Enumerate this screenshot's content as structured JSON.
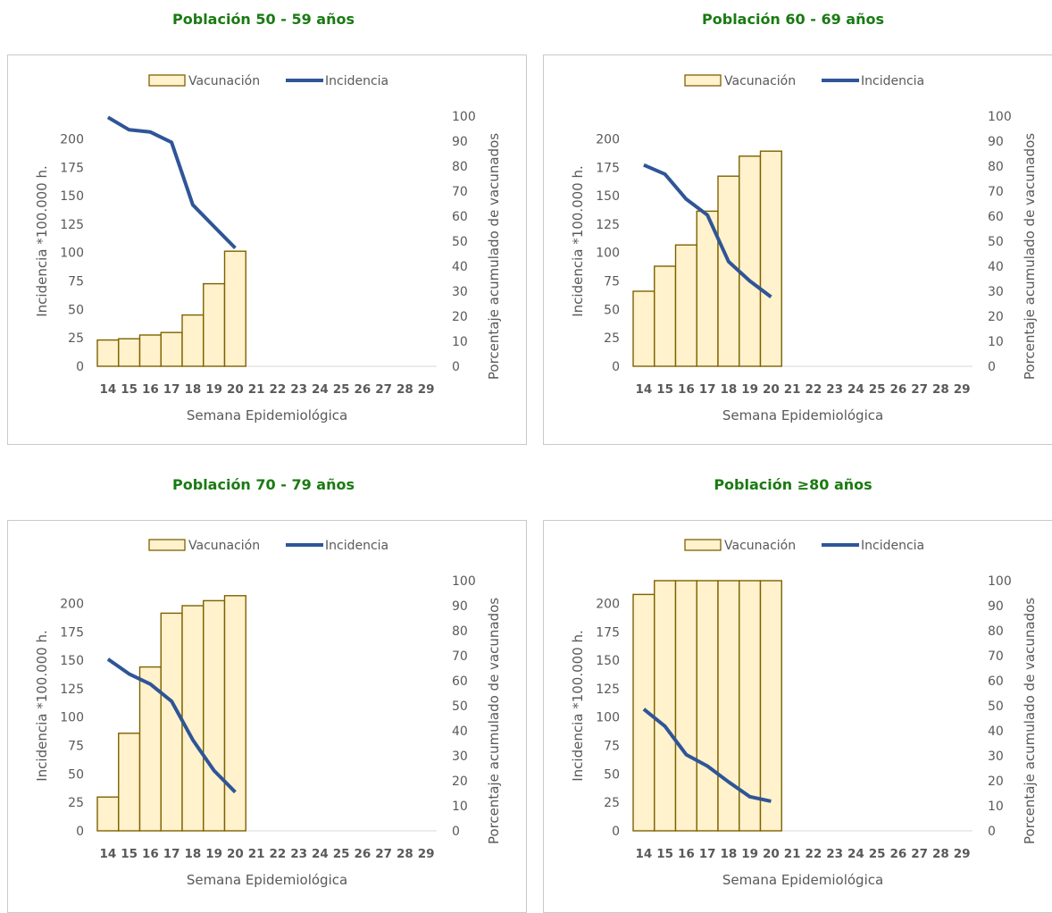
{
  "colors": {
    "title": "#1a7a12",
    "bar_fill": "#fff2cc",
    "bar_stroke": "#7f6000",
    "line": "#2f5597",
    "axis_text": "#595959",
    "tick_bold": "#595959"
  },
  "legend": {
    "bar_label": "Vacunación",
    "line_label": "Incidencia"
  },
  "charts": [
    {
      "title": "Población 50 - 59  años",
      "chart_data": {
        "type": "bar",
        "categories": [
          "14",
          "15",
          "16",
          "17",
          "18",
          "19",
          "20",
          "21",
          "22",
          "23",
          "24",
          "25",
          "26",
          "27",
          "28",
          "29"
        ],
        "series": [
          {
            "name": "Vacunación",
            "type": "bar",
            "axis": "right",
            "values": [
              10.5,
              11,
              12.5,
              13.5,
              20.5,
              33,
              46,
              null,
              null,
              null,
              null,
              null,
              null,
              null,
              null,
              null
            ]
          },
          {
            "name": "Incidencia",
            "type": "line",
            "axis": "left",
            "values": [
              219,
              208,
              206,
              197,
              142,
              123,
              104,
              null,
              null,
              null,
              null,
              null,
              null,
              null,
              null,
              null
            ]
          }
        ],
        "xlabel": "Semana Epidemiológica",
        "ylabel": "Incidencia *100.000 h.",
        "y2label": "Porcentaje acumulado de vacunados",
        "yticks": [
          "0",
          "25",
          "50",
          "75",
          "100",
          "125",
          "150",
          "175",
          "200"
        ],
        "y2ticks": [
          "0",
          "10",
          "20",
          "30",
          "40",
          "50",
          "60",
          "70",
          "80",
          "90",
          "100"
        ],
        "ylim": [
          0,
          220
        ],
        "y2lim": [
          0,
          100
        ]
      }
    },
    {
      "title": "Población 60 - 69 años",
      "chart_data": {
        "type": "bar",
        "categories": [
          "14",
          "15",
          "16",
          "17",
          "18",
          "19",
          "20",
          "21",
          "22",
          "23",
          "24",
          "25",
          "26",
          "27",
          "28",
          "29"
        ],
        "series": [
          {
            "name": "Vacunación",
            "type": "bar",
            "axis": "right",
            "values": [
              30,
              40,
              48.5,
              62,
              76,
              84,
              86,
              null,
              null,
              null,
              null,
              null,
              null,
              null,
              null,
              null
            ]
          },
          {
            "name": "Incidencia",
            "type": "line",
            "axis": "left",
            "values": [
              177,
              169,
              147,
              133,
              92,
              75,
              61,
              null,
              null,
              null,
              null,
              null,
              null,
              null,
              null,
              null
            ]
          }
        ],
        "xlabel": "Semana Epidemiológica",
        "ylabel": "Incidencia *100.000 h.",
        "y2label": "Porcentaje acumulado de vacunados",
        "yticks": [
          "0",
          "25",
          "50",
          "75",
          "100",
          "125",
          "150",
          "175",
          "200"
        ],
        "y2ticks": [
          "0",
          "10",
          "20",
          "30",
          "40",
          "50",
          "60",
          "70",
          "80",
          "90",
          "100"
        ],
        "ylim": [
          0,
          220
        ],
        "y2lim": [
          0,
          100
        ]
      }
    },
    {
      "title": "Población 70 - 79 años",
      "chart_data": {
        "type": "bar",
        "categories": [
          "14",
          "15",
          "16",
          "17",
          "18",
          "19",
          "20",
          "21",
          "22",
          "23",
          "24",
          "25",
          "26",
          "27",
          "28",
          "29"
        ],
        "series": [
          {
            "name": "Vacunación",
            "type": "bar",
            "axis": "right",
            "values": [
              13.5,
              39,
              65.5,
              87,
              90,
              92,
              94,
              null,
              null,
              null,
              null,
              null,
              null,
              null,
              null,
              null
            ]
          },
          {
            "name": "Incidencia",
            "type": "line",
            "axis": "left",
            "values": [
              151,
              138,
              129,
              114,
              80,
              53,
              34,
              null,
              null,
              null,
              null,
              null,
              null,
              null,
              null,
              null
            ]
          }
        ],
        "xlabel": "Semana Epidemiológica",
        "ylabel": "Incidencia *100.000 h.",
        "y2label": "Porcentaje acumulado de vacunados",
        "yticks": [
          "0",
          "25",
          "50",
          "75",
          "100",
          "125",
          "150",
          "175",
          "200"
        ],
        "y2ticks": [
          "0",
          "10",
          "20",
          "30",
          "40",
          "50",
          "60",
          "70",
          "80",
          "90",
          "100"
        ],
        "ylim": [
          0,
          220
        ],
        "y2lim": [
          0,
          100
        ]
      }
    },
    {
      "title": "Población ≥80 años",
      "chart_data": {
        "type": "bar",
        "categories": [
          "14",
          "15",
          "16",
          "17",
          "18",
          "19",
          "20",
          "21",
          "22",
          "23",
          "24",
          "25",
          "26",
          "27",
          "28",
          "29"
        ],
        "series": [
          {
            "name": "Vacunación",
            "type": "bar",
            "axis": "right",
            "values": [
              94.5,
              100,
              100,
              100,
              100,
              100,
              100,
              null,
              null,
              null,
              null,
              null,
              null,
              null,
              null,
              null
            ]
          },
          {
            "name": "Incidencia",
            "type": "line",
            "axis": "left",
            "values": [
              107,
              92,
              67,
              57,
              43,
              30,
              26,
              null,
              null,
              null,
              null,
              null,
              null,
              null,
              null,
              null
            ]
          }
        ],
        "xlabel": "Semana Epidemiológica",
        "ylabel": "Incidencia *100.000 h.",
        "y2label": "Porcentaje acumulado de vacunados",
        "yticks": [
          "0",
          "25",
          "50",
          "75",
          "100",
          "125",
          "150",
          "175",
          "200"
        ],
        "y2ticks": [
          "0",
          "10",
          "20",
          "30",
          "40",
          "50",
          "60",
          "70",
          "80",
          "90",
          "100"
        ],
        "ylim": [
          0,
          220
        ],
        "y2lim": [
          0,
          100
        ]
      }
    }
  ]
}
